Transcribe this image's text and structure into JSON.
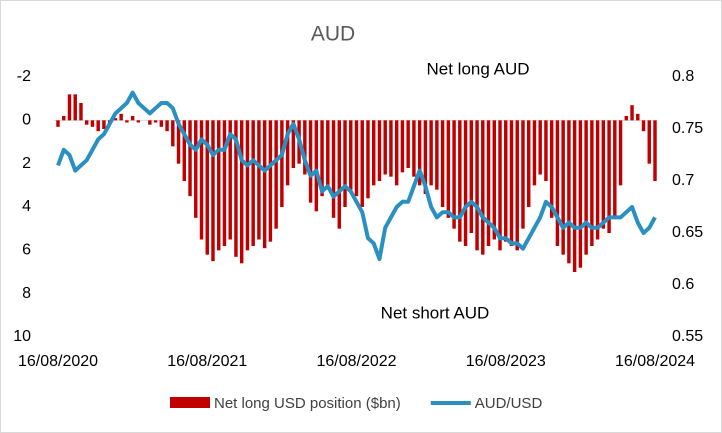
{
  "chart_data": {
    "type": "bar",
    "title": "AUD",
    "annotations": [
      "Net long AUD",
      "Net short AUD"
    ],
    "categories": [
      "16/08/2020",
      null,
      null,
      null,
      null,
      null,
      null,
      null,
      null,
      null,
      null,
      null,
      null,
      null,
      null,
      null,
      null,
      null,
      null,
      null,
      null,
      null,
      null,
      null,
      null,
      null,
      "16/08/2021",
      null,
      null,
      null,
      null,
      null,
      null,
      null,
      null,
      null,
      null,
      null,
      null,
      null,
      null,
      null,
      null,
      null,
      null,
      null,
      null,
      null,
      null,
      null,
      null,
      null,
      "16/08/2022",
      null,
      null,
      null,
      null,
      null,
      null,
      null,
      null,
      null,
      null,
      null,
      null,
      null,
      null,
      null,
      null,
      null,
      null,
      null,
      null,
      null,
      null,
      null,
      null,
      null,
      "16/08/2023",
      null,
      null,
      null,
      null,
      null,
      null,
      null,
      null,
      null,
      null,
      null,
      null,
      null,
      null,
      null,
      null,
      null,
      null,
      null,
      null,
      null,
      null,
      null,
      null,
      null,
      "16/08/2024"
    ],
    "series": [
      {
        "name": "Net long USD position ($bn)",
        "type": "bar",
        "color": "#c00000",
        "values": [
          0.3,
          -0.2,
          -1.2,
          -1.2,
          -0.8,
          0.2,
          0.3,
          0.5,
          0.4,
          0.1,
          -0.1,
          -0.3,
          0.1,
          -0.2,
          0.1,
          0,
          0.2,
          0.1,
          0.3,
          0.5,
          1.2,
          2.0,
          2.8,
          3.5,
          4.5,
          5.5,
          6.2,
          6.5,
          6.0,
          5.8,
          5.5,
          6.3,
          6.6,
          6.0,
          5.8,
          5.5,
          5.9,
          5.6,
          5.0,
          4.0,
          3.0,
          2.2,
          2.0,
          2.5,
          3.8,
          4.2,
          3.5,
          3.0,
          4.5,
          5.0,
          4.0,
          3.2,
          3.5,
          4.0,
          3.6,
          3.0,
          2.8,
          2.5,
          2.6,
          3.0,
          2.4,
          2.2,
          2.6,
          3.0,
          3.4,
          3.0,
          3.2,
          4.0,
          4.5,
          5.0,
          5.6,
          5.8,
          5.2,
          6.0,
          6.2,
          5.8,
          5.5,
          6.0,
          5.6,
          5.8,
          6.0,
          5.0,
          4.0,
          3.0,
          2.5,
          2.8,
          4.5,
          5.8,
          6.2,
          6.6,
          7.0,
          6.8,
          6.2,
          5.8,
          5.5,
          5.0,
          5.2,
          4.5,
          3.0,
          -0.2,
          -0.7,
          -0.3,
          0.5,
          2.0,
          2.8
        ]
      },
      {
        "name": "AUD/USD",
        "type": "line",
        "axis": "y2",
        "color": "#2a8fc1",
        "values": [
          0.715,
          0.73,
          0.725,
          0.71,
          0.715,
          0.72,
          0.73,
          0.74,
          0.745,
          0.755,
          0.765,
          0.77,
          0.775,
          0.785,
          0.775,
          0.77,
          0.765,
          0.77,
          0.775,
          0.775,
          0.77,
          0.755,
          0.745,
          0.735,
          0.73,
          0.74,
          0.735,
          0.725,
          0.73,
          0.73,
          0.745,
          0.74,
          0.72,
          0.715,
          0.72,
          0.715,
          0.71,
          0.715,
          0.72,
          0.725,
          0.745,
          0.755,
          0.74,
          0.72,
          0.705,
          0.71,
          0.69,
          0.695,
          0.685,
          0.69,
          0.695,
          0.69,
          0.68,
          0.67,
          0.645,
          0.64,
          0.625,
          0.655,
          0.665,
          0.675,
          0.68,
          0.68,
          0.695,
          0.71,
          0.695,
          0.675,
          0.665,
          0.67,
          0.67,
          0.665,
          0.665,
          0.675,
          0.68,
          0.675,
          0.665,
          0.66,
          0.655,
          0.645,
          0.645,
          0.64,
          0.64,
          0.635,
          0.645,
          0.655,
          0.665,
          0.68,
          0.675,
          0.665,
          0.655,
          0.66,
          0.655,
          0.655,
          0.66,
          0.655,
          0.655,
          0.66,
          0.665,
          0.665,
          0.665,
          0.67,
          0.675,
          0.66,
          0.65,
          0.655,
          0.665
        ]
      }
    ],
    "ylim": [
      -2,
      10
    ],
    "y_inverted": true,
    "yticks": [
      -2,
      0,
      2,
      4,
      6,
      8,
      10
    ],
    "y2lim": [
      0.55,
      0.8
    ],
    "y2ticks": [
      0.55,
      0.6,
      0.65,
      0.7,
      0.75,
      0.8
    ],
    "legend": "bottom"
  }
}
